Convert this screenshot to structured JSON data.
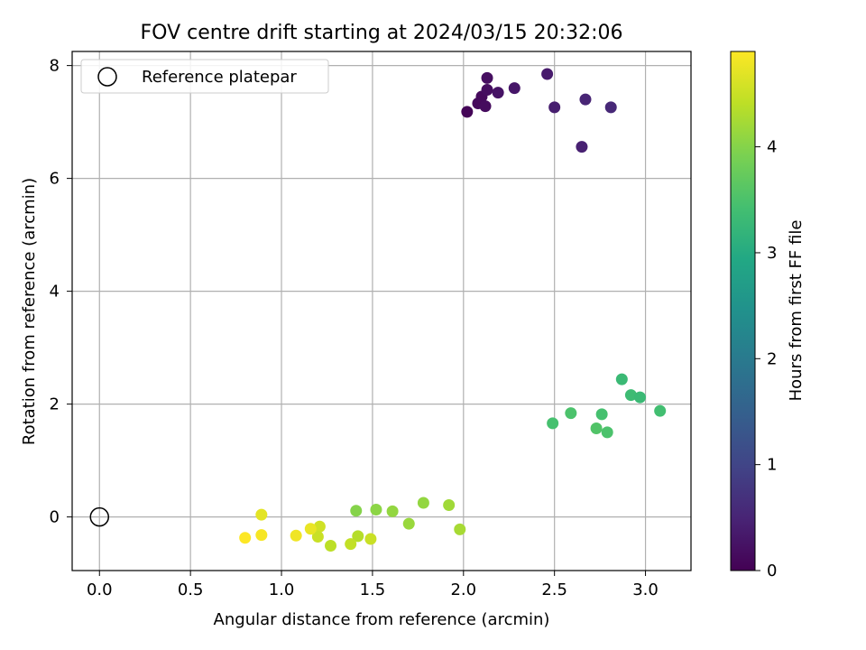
{
  "chart_data": {
    "type": "scatter",
    "title": "FOV centre drift starting at 2024/03/15 20:32:06",
    "xlabel": "Angular distance from reference (arcmin)",
    "ylabel": "Rotation from reference (arcmin)",
    "xlim": [
      -0.15,
      3.25
    ],
    "ylim": [
      -0.95,
      8.25
    ],
    "x_ticks": [
      0.0,
      0.5,
      1.0,
      1.5,
      2.0,
      2.5,
      3.0
    ],
    "x_tick_labels": [
      "0.0",
      "0.5",
      "1.0",
      "1.5",
      "2.0",
      "2.5",
      "3.0"
    ],
    "y_ticks": [
      0,
      2,
      4,
      6,
      8
    ],
    "y_tick_labels": [
      "0",
      "2",
      "4",
      "6",
      "8"
    ],
    "grid": true,
    "legend": {
      "placement": "top-left",
      "entries": [
        {
          "label": "Reference platepar",
          "marker": "open-circle",
          "x": 0.0,
          "y": 0.0
        }
      ]
    },
    "colorbar": {
      "label": "Hours from first FF file",
      "colormap": "viridis",
      "range": [
        0,
        4.9
      ],
      "ticks": [
        0,
        1,
        2,
        3,
        4
      ],
      "tick_labels": [
        "0",
        "1",
        "2",
        "3",
        "4"
      ]
    },
    "points": [
      {
        "x": 2.02,
        "y": 7.18,
        "hours": 0.05
      },
      {
        "x": 2.08,
        "y": 7.33,
        "hours": 0.1
      },
      {
        "x": 2.1,
        "y": 7.45,
        "hours": 0.12
      },
      {
        "x": 2.12,
        "y": 7.28,
        "hours": 0.15
      },
      {
        "x": 2.13,
        "y": 7.57,
        "hours": 0.18
      },
      {
        "x": 2.13,
        "y": 7.78,
        "hours": 0.2
      },
      {
        "x": 2.19,
        "y": 7.52,
        "hours": 0.25
      },
      {
        "x": 2.28,
        "y": 7.6,
        "hours": 0.3
      },
      {
        "x": 2.46,
        "y": 7.85,
        "hours": 0.35
      },
      {
        "x": 2.5,
        "y": 7.26,
        "hours": 0.4
      },
      {
        "x": 2.65,
        "y": 6.56,
        "hours": 0.45
      },
      {
        "x": 2.67,
        "y": 7.4,
        "hours": 0.5
      },
      {
        "x": 2.81,
        "y": 7.26,
        "hours": 0.55
      },
      {
        "x": 2.87,
        "y": 2.44,
        "hours": 3.3
      },
      {
        "x": 2.92,
        "y": 2.16,
        "hours": 3.35
      },
      {
        "x": 2.97,
        "y": 2.12,
        "hours": 3.3
      },
      {
        "x": 3.08,
        "y": 1.88,
        "hours": 3.4
      },
      {
        "x": 2.49,
        "y": 1.66,
        "hours": 3.45
      },
      {
        "x": 2.59,
        "y": 1.84,
        "hours": 3.5
      },
      {
        "x": 2.76,
        "y": 1.82,
        "hours": 3.45
      },
      {
        "x": 2.73,
        "y": 1.57,
        "hours": 3.55
      },
      {
        "x": 2.79,
        "y": 1.5,
        "hours": 3.5
      },
      {
        "x": 1.41,
        "y": 0.11,
        "hours": 4.0
      },
      {
        "x": 1.52,
        "y": 0.13,
        "hours": 4.05
      },
      {
        "x": 1.61,
        "y": 0.1,
        "hours": 4.1
      },
      {
        "x": 1.7,
        "y": -0.12,
        "hours": 4.15
      },
      {
        "x": 1.78,
        "y": 0.25,
        "hours": 4.1
      },
      {
        "x": 1.92,
        "y": 0.21,
        "hours": 4.2
      },
      {
        "x": 1.98,
        "y": -0.22,
        "hours": 4.25
      },
      {
        "x": 1.42,
        "y": -0.34,
        "hours": 4.35
      },
      {
        "x": 1.27,
        "y": -0.51,
        "hours": 4.4
      },
      {
        "x": 1.38,
        "y": -0.48,
        "hours": 4.45
      },
      {
        "x": 1.49,
        "y": -0.39,
        "hours": 4.5
      },
      {
        "x": 1.21,
        "y": -0.17,
        "hours": 4.55
      },
      {
        "x": 1.2,
        "y": -0.35,
        "hours": 4.5
      },
      {
        "x": 1.16,
        "y": -0.21,
        "hours": 4.75
      },
      {
        "x": 1.08,
        "y": -0.33,
        "hours": 4.8
      },
      {
        "x": 0.89,
        "y": 0.04,
        "hours": 4.7
      },
      {
        "x": 0.89,
        "y": -0.32,
        "hours": 4.85
      },
      {
        "x": 0.8,
        "y": -0.37,
        "hours": 4.9
      }
    ]
  }
}
